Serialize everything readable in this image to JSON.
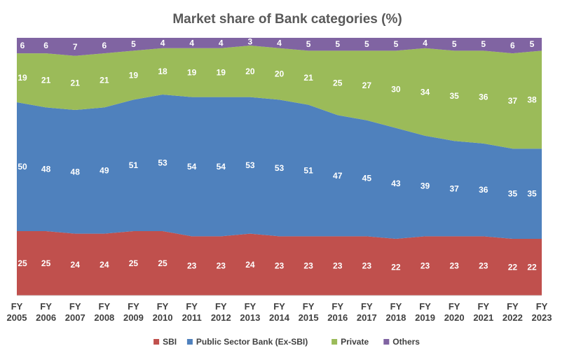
{
  "chart_data": {
    "type": "area",
    "stacked": true,
    "title": "Market share of Bank categories (%)",
    "categories": [
      "FY 2005",
      "FY 2006",
      "FY 2007",
      "FY 2008",
      "FY 2009",
      "FY 2010",
      "FY 2011",
      "FY 2012",
      "FY 2013",
      "FY 2014",
      "FY 2015",
      "FY 2016",
      "FY 2017",
      "FY 2018",
      "FY 2019",
      "FY 2020",
      "FY 2021",
      "FY 2022",
      "FY 2023"
    ],
    "series": [
      {
        "name": "SBI",
        "color": "#c0504d",
        "values": [
          25,
          25,
          24,
          24,
          25,
          25,
          23,
          23,
          24,
          23,
          23,
          23,
          23,
          22,
          23,
          23,
          23,
          22,
          22
        ]
      },
      {
        "name": "Public Sector Bank (Ex-SBI)",
        "color": "#4f81bd",
        "values": [
          50,
          48,
          48,
          49,
          51,
          53,
          54,
          54,
          53,
          53,
          51,
          47,
          45,
          43,
          39,
          37,
          36,
          35,
          35
        ]
      },
      {
        "name": "Private",
        "color": "#9bbb59",
        "values": [
          19,
          21,
          21,
          21,
          19,
          18,
          19,
          19,
          20,
          20,
          21,
          25,
          27,
          30,
          34,
          35,
          36,
          37,
          38
        ]
      },
      {
        "name": "Others",
        "color": "#8064a2",
        "values": [
          6,
          6,
          7,
          6,
          5,
          4,
          4,
          4,
          3,
          4,
          5,
          5,
          5,
          5,
          4,
          5,
          5,
          6,
          5
        ]
      }
    ],
    "ylim": [
      0,
      100
    ],
    "legend_position": "bottom",
    "grid": false
  }
}
